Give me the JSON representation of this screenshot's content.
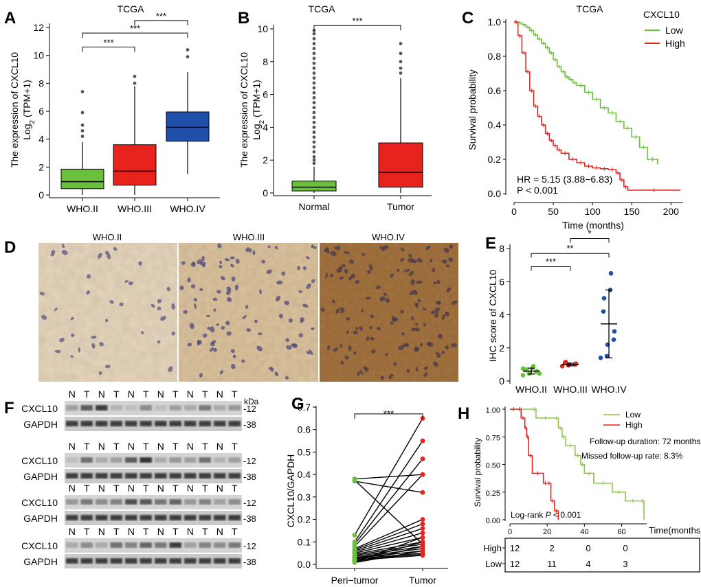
{
  "panel_labels": [
    "A",
    "B",
    "C",
    "D",
    "E",
    "F",
    "G",
    "H"
  ],
  "chart_data": [
    {
      "id": "A",
      "type": "boxplot",
      "title": "TCGA",
      "ylabel_line1": "The  expression  of CXCL10",
      "ylabel_line2": "Log",
      "ylabel_sub": "2",
      "ylabel_tail": " (TPM+1)",
      "ylim": [
        0,
        12
      ],
      "yticks": [
        0,
        2,
        4,
        6,
        8,
        10,
        12
      ],
      "categories": [
        "WHO.II",
        "WHO.III",
        "WHO.IV"
      ],
      "colors": [
        "#6abf3c",
        "#e8231d",
        "#1f4fa8"
      ],
      "boxes": [
        {
          "q1": 0.45,
          "median": 0.95,
          "q3": 1.85,
          "whisker_low": 0.0,
          "whisker_high": 3.8,
          "outliers": [
            4.2,
            4.6,
            5.0,
            5.9,
            7.4
          ]
        },
        {
          "q1": 0.7,
          "median": 1.7,
          "q3": 3.6,
          "whisker_low": 0.0,
          "whisker_high": 7.8,
          "outliers": [
            8.0,
            8.5
          ]
        },
        {
          "q1": 3.85,
          "median": 4.85,
          "q3": 5.95,
          "whisker_low": 1.5,
          "whisker_high": 8.8,
          "outliers": [
            9.9,
            10.4
          ]
        }
      ],
      "significance": [
        {
          "from": 0,
          "to": 1,
          "y": 10.6,
          "label": "***"
        },
        {
          "from": 0,
          "to": 2,
          "y": 11.6,
          "label": "***"
        },
        {
          "from": 1,
          "to": 2,
          "y": 12.5,
          "label": "***"
        }
      ]
    },
    {
      "id": "B",
      "type": "boxplot",
      "title": "TCGA",
      "ylabel_line1": "The  expression  of CXCL10",
      "ylabel_line2": "Log",
      "ylabel_sub": "2",
      "ylabel_tail": " (TPM+1)",
      "ylim": [
        0,
        10
      ],
      "yticks": [
        0,
        2,
        4,
        6,
        8,
        10
      ],
      "categories": [
        "Normal",
        "Tumor"
      ],
      "colors": [
        "#6abf3c",
        "#e8231d"
      ],
      "boxes": [
        {
          "q1": 0.12,
          "median": 0.35,
          "q3": 0.72,
          "whisker_low": 0.0,
          "whisker_high": 1.6,
          "outliers": [
            1.8,
            2.0,
            2.2,
            2.5,
            2.8,
            3.1,
            3.4,
            3.7,
            4.0,
            4.3,
            4.6,
            4.9,
            5.2,
            5.5,
            5.8,
            6.1,
            6.4,
            6.7,
            7.0,
            7.3,
            7.6,
            7.9,
            8.2,
            8.5,
            8.8,
            9.1,
            9.4,
            9.7,
            9.9
          ]
        },
        {
          "q1": 0.35,
          "median": 1.25,
          "q3": 3.05,
          "whisker_low": 0.0,
          "whisker_high": 7.0,
          "outliers": [
            7.3,
            7.6,
            8.0,
            8.5,
            9.1
          ]
        }
      ],
      "significance": [
        {
          "from": 0,
          "to": 1,
          "y": 10.2,
          "label": "***"
        }
      ]
    },
    {
      "id": "C",
      "type": "km",
      "title": "TCGA",
      "xlabel": "Time (months)",
      "ylabel": "Survival probability",
      "xlim": [
        0,
        212
      ],
      "xticks": [
        0,
        50,
        100,
        150,
        200
      ],
      "ylim": [
        0,
        1
      ],
      "yticks": [
        "0.0",
        "0.2",
        "0.4",
        "0.6",
        "0.8",
        "1.0"
      ],
      "legend_title": "CXCL10",
      "series": [
        {
          "name": "Low",
          "color": "#6abf3c",
          "x": [
            0,
            5,
            10,
            15,
            20,
            25,
            30,
            35,
            40,
            45,
            50,
            55,
            60,
            65,
            70,
            75,
            80,
            90,
            100,
            110,
            120,
            130,
            140,
            150,
            160,
            170,
            183
          ],
          "y": [
            1.0,
            0.995,
            0.985,
            0.97,
            0.95,
            0.925,
            0.9,
            0.875,
            0.85,
            0.82,
            0.78,
            0.74,
            0.71,
            0.68,
            0.665,
            0.645,
            0.63,
            0.59,
            0.55,
            0.5,
            0.47,
            0.42,
            0.38,
            0.33,
            0.27,
            0.2,
            0.17
          ]
        },
        {
          "name": "High",
          "color": "#e8231d",
          "x": [
            0,
            5,
            10,
            15,
            20,
            25,
            30,
            35,
            40,
            45,
            50,
            55,
            60,
            70,
            80,
            90,
            100,
            110,
            120,
            130,
            135,
            140,
            145,
            212
          ],
          "y": [
            1.0,
            0.92,
            0.82,
            0.71,
            0.6,
            0.51,
            0.45,
            0.4,
            0.35,
            0.31,
            0.28,
            0.255,
            0.235,
            0.2,
            0.18,
            0.16,
            0.15,
            0.145,
            0.14,
            0.12,
            0.08,
            0.04,
            0.02,
            0.02
          ]
        }
      ],
      "annotation_hr": "HR = 5.15 (3.88−6.83)",
      "annotation_p": "P < 0.001"
    },
    {
      "id": "E",
      "type": "scatter",
      "ylabel": "IHC  score of CXCL10",
      "ylim": [
        0,
        8
      ],
      "yticks": [
        0,
        2,
        4,
        6,
        8
      ],
      "categories": [
        "WHO.II",
        "WHO.III",
        "WHO.IV"
      ],
      "colors": [
        "#6abf3c",
        "#e8231d",
        "#1f4fa8"
      ],
      "points": [
        [
          0.35,
          0.45,
          0.5,
          0.55,
          0.6,
          0.65,
          0.7,
          0.8,
          0.9,
          0.45,
          0.75
        ],
        [
          0.9,
          0.95,
          1.0,
          1.0,
          1.05,
          1.1,
          1.15
        ],
        [
          1.4,
          1.5,
          2.2,
          2.5,
          3.0,
          4.2,
          5.0,
          5.5,
          6.5
        ]
      ],
      "mean": [
        0.6,
        1.0,
        3.45
      ],
      "sd": [
        0.18,
        0.08,
        2.05
      ],
      "significance": [
        {
          "from": 0,
          "to": 1,
          "y": 6.9,
          "label": "***"
        },
        {
          "from": 0,
          "to": 2,
          "y": 7.7,
          "label": "**"
        },
        {
          "from": 1,
          "to": 2,
          "y": 8.6,
          "label": "*"
        }
      ]
    },
    {
      "id": "G",
      "type": "paired",
      "ylabel": "CXCL10/GAPDH",
      "ylim": [
        0,
        0.7
      ],
      "yticks": [
        "0.0",
        "0.1",
        "0.2",
        "0.3",
        "0.4",
        "0.5",
        "0.6",
        "0.7"
      ],
      "categories": [
        "Peri−tumor",
        "Tumor"
      ],
      "colors": [
        "#6abf3c",
        "#e8231d"
      ],
      "pairs": [
        [
          0.38,
          0.4
        ],
        [
          0.375,
          0.09
        ],
        [
          0.37,
          0.32
        ],
        [
          0.13,
          0.65
        ],
        [
          0.1,
          0.55
        ],
        [
          0.09,
          0.47
        ],
        [
          0.08,
          0.4
        ],
        [
          0.07,
          0.2
        ],
        [
          0.065,
          0.18
        ],
        [
          0.06,
          0.16
        ],
        [
          0.055,
          0.14
        ],
        [
          0.05,
          0.12
        ],
        [
          0.045,
          0.1
        ],
        [
          0.04,
          0.09
        ],
        [
          0.035,
          0.08
        ],
        [
          0.03,
          0.07
        ],
        [
          0.028,
          0.06
        ],
        [
          0.025,
          0.05
        ],
        [
          0.02,
          0.045
        ],
        [
          0.018,
          0.04
        ],
        [
          0.015,
          0.1
        ],
        [
          0.012,
          0.12
        ],
        [
          0.01,
          0.08
        ],
        [
          0.008,
          0.06
        ]
      ],
      "significance": {
        "y": 0.67,
        "label": "***"
      }
    },
    {
      "id": "H",
      "type": "km",
      "xlabel": "Time(months)",
      "ylabel": "Survival probability",
      "xlim": [
        0,
        72
      ],
      "xticks": [
        0,
        20,
        40,
        60
      ],
      "ylim": [
        0,
        1
      ],
      "yticks": [
        "0.00",
        "0.25",
        "0.50",
        "0.75",
        "1.00"
      ],
      "series": [
        {
          "name": "Low",
          "color": "#8bc34a",
          "x": [
            0,
            12,
            14,
            24,
            26,
            28,
            30,
            35,
            38,
            40,
            45,
            55,
            62,
            70,
            72
          ],
          "y": [
            1.0,
            1.0,
            0.92,
            0.92,
            0.83,
            0.75,
            0.67,
            0.58,
            0.5,
            0.42,
            0.33,
            0.25,
            0.17,
            0.17,
            0.0
          ]
        },
        {
          "name": "High",
          "color": "#e8231d",
          "x": [
            0,
            4,
            6,
            8,
            9,
            10,
            12,
            18,
            20,
            22,
            24,
            26
          ],
          "y": [
            1.0,
            1.0,
            0.92,
            0.83,
            0.75,
            0.58,
            0.42,
            0.33,
            0.33,
            0.17,
            0.08,
            0.0
          ]
        }
      ],
      "annotation_followup": "Follow-up duration:  72 months",
      "annotation_missed": "Missed follow-up rate:  8.3%",
      "annotation_p_prefix": "Log-rank ",
      "annotation_p_italic": "P",
      "annotation_p_suffix": " < 0.001",
      "risk_table": {
        "rows": [
          {
            "name": "High",
            "color": "#e8231d",
            "counts": [
              "12",
              "2",
              "0",
              "0"
            ]
          },
          {
            "name": "Low",
            "color": "#8bc34a",
            "counts": [
              "12",
              "11",
              "4",
              "3"
            ]
          }
        ]
      }
    }
  ],
  "panel_D": {
    "titles": [
      "WHO.II",
      "WHO.III",
      "WHO.IV"
    ]
  },
  "panel_F": {
    "kda_label": "kDa",
    "header": [
      "N",
      "T",
      "N",
      "T",
      "N",
      "T",
      "N",
      "T",
      "N",
      "T",
      "N",
      "T"
    ],
    "blots": [
      {
        "rows": [
          {
            "label": "CXCL10",
            "marker": "-12"
          },
          {
            "label": "GAPDH",
            "marker": "-38"
          }
        ]
      },
      {
        "rows": [
          {
            "label": "CXCL10",
            "marker": "-12"
          },
          {
            "label": "GAPDH",
            "marker": "-38"
          }
        ]
      },
      {
        "rows": [
          {
            "label": "CXCL10",
            "marker": "-12"
          },
          {
            "label": "GAPDH",
            "marker": "-38"
          }
        ]
      },
      {
        "rows": [
          {
            "label": "CXCL10",
            "marker": "-12"
          },
          {
            "label": "GAPDH",
            "marker": "-38"
          }
        ]
      }
    ],
    "intensities": [
      [
        0.35,
        0.7,
        0.85,
        0.25,
        0.2,
        0.45,
        0.2,
        0.35,
        0.3,
        0.55,
        0.3,
        0.4
      ],
      [
        0.2,
        0.6,
        0.3,
        0.35,
        0.7,
        0.9,
        0.3,
        0.4,
        0.35,
        0.6,
        0.25,
        0.35
      ],
      [
        0.4,
        0.55,
        0.45,
        0.5,
        0.75,
        0.7,
        0.55,
        0.65,
        0.4,
        0.5,
        0.35,
        0.45
      ],
      [
        0.3,
        0.45,
        0.3,
        0.6,
        0.5,
        0.65,
        0.55,
        0.85,
        0.35,
        0.5,
        0.45,
        0.55
      ]
    ]
  }
}
